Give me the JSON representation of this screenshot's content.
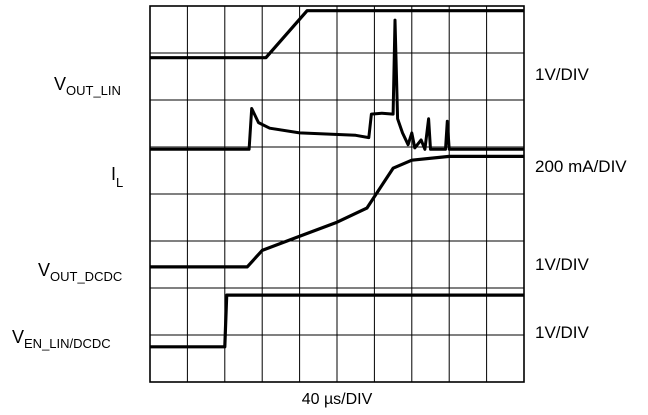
{
  "chart_data": {
    "type": "line",
    "title": "",
    "xlabel": "40 µs/DIV",
    "ylabel": "",
    "grid": true,
    "x_divisions": 10,
    "y_divisions": 8,
    "x_unit": "div",
    "y_unit": "div",
    "xlim": [
      0,
      10
    ],
    "ylim": [
      0,
      8
    ],
    "series": [
      {
        "key": "vout_lin",
        "label_main": "V",
        "label_sub": "OUT_LIN",
        "scale": "1V/DIV",
        "points": [
          [
            0,
            6.9
          ],
          [
            3.1,
            6.9
          ],
          [
            4.2,
            7.9
          ],
          [
            10,
            7.9
          ]
        ]
      },
      {
        "key": "il",
        "label_main": "I",
        "label_sub": "L",
        "scale": "200 mA/DIV",
        "points": [
          [
            0,
            4.95
          ],
          [
            2.65,
            4.95
          ],
          [
            2.72,
            5.82
          ],
          [
            2.9,
            5.52
          ],
          [
            3.2,
            5.4
          ],
          [
            4,
            5.3
          ],
          [
            5.5,
            5.25
          ],
          [
            5.85,
            5.2
          ],
          [
            5.92,
            5.7
          ],
          [
            6.2,
            5.72
          ],
          [
            6.5,
            5.7
          ],
          [
            6.55,
            7.7
          ],
          [
            6.62,
            5.6
          ],
          [
            6.75,
            5.3
          ],
          [
            6.9,
            5.05
          ],
          [
            7.0,
            5.3
          ],
          [
            7.08,
            4.98
          ],
          [
            7.25,
            5.15
          ],
          [
            7.35,
            4.95
          ],
          [
            7.45,
            5.6
          ],
          [
            7.5,
            4.95
          ],
          [
            7.9,
            4.95
          ],
          [
            7.95,
            5.55
          ],
          [
            8.0,
            4.95
          ],
          [
            10,
            4.95
          ]
        ]
      },
      {
        "key": "vout_dcdc",
        "label_main": "V",
        "label_sub": "OUT_DCDC",
        "scale": "1V/DIV",
        "points": [
          [
            0,
            2.45
          ],
          [
            2.6,
            2.45
          ],
          [
            3.0,
            2.8
          ],
          [
            4.0,
            3.1
          ],
          [
            5.0,
            3.4
          ],
          [
            5.8,
            3.7
          ],
          [
            6.5,
            4.55
          ],
          [
            7.0,
            4.72
          ],
          [
            8.0,
            4.8
          ],
          [
            10,
            4.8
          ]
        ]
      },
      {
        "key": "ven",
        "label_main": "V",
        "label_sub": "EN_LIN/DCDC",
        "scale": "1V/DIV",
        "points": [
          [
            0,
            0.75
          ],
          [
            2.0,
            0.75
          ],
          [
            2.05,
            1.85
          ],
          [
            10,
            1.85
          ]
        ]
      }
    ]
  }
}
